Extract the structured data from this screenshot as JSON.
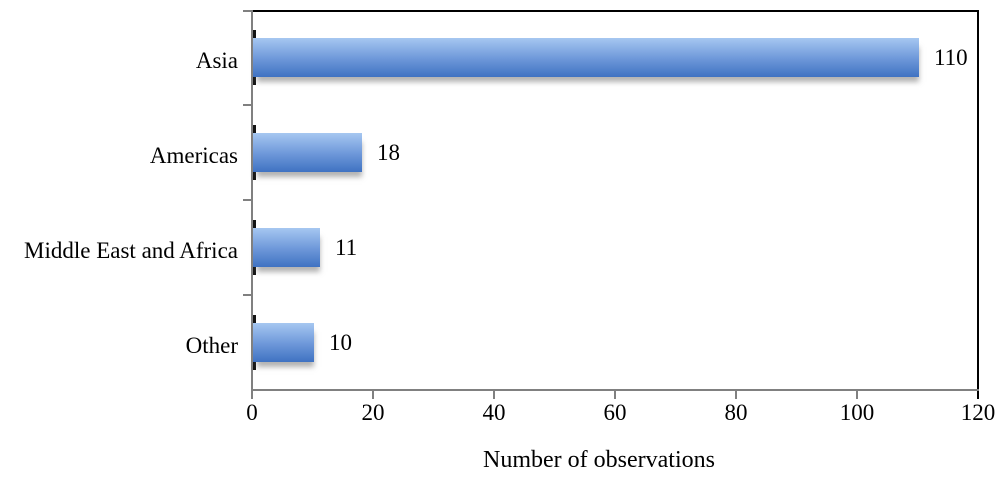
{
  "chart_data": {
    "type": "bar",
    "orientation": "horizontal",
    "title": "",
    "xlabel": "Number of observations",
    "ylabel": "",
    "categories": [
      "Asia",
      "Americas",
      "Middle East and Africa",
      "Other"
    ],
    "values": [
      110,
      18,
      11,
      10
    ],
    "value_labels": [
      "110",
      "18",
      "11",
      "10"
    ],
    "x_ticks": [
      "0",
      "20",
      "40",
      "60",
      "80",
      "100",
      "120"
    ],
    "xlim": [
      0,
      120
    ],
    "grid": "off",
    "legend": "none",
    "bar_gradient_top": "#a6c7f1",
    "bar_gradient_bottom": "#3f72c2",
    "axis_color": "#808080",
    "plot_border_color": "#000000",
    "text_color": "#000000"
  }
}
